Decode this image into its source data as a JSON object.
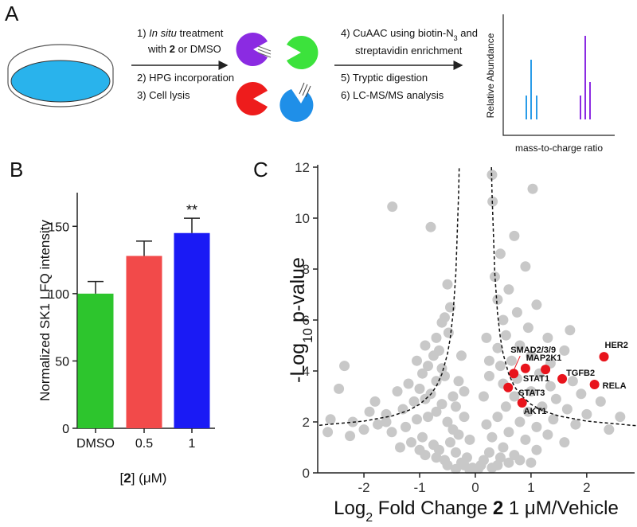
{
  "panels": {
    "a": "A",
    "b": "B",
    "c": "C"
  },
  "workflow": {
    "left_lines": [
      [
        "1) ",
        "In situ",
        " treatment"
      ],
      [
        "with ",
        "2",
        " or DMSO"
      ],
      [
        "2) HPG incorporation"
      ],
      [
        "3) Cell lysis"
      ]
    ],
    "right_lines": [
      [
        "4) CuAAC using biotin-N",
        "3",
        " and"
      ],
      [
        "streptavidin enrichment"
      ],
      [
        "5) Tryptic digestion"
      ],
      [
        "6) LC-MS/MS analysis"
      ]
    ],
    "spectrum": {
      "y_label": "Relative Abundance",
      "x_label": "mass-to-charge ratio"
    }
  },
  "chart_data": [
    {
      "type": "bar",
      "ylabel": "Normalized SK1 LFQ intensity",
      "xlabel": [
        "[",
        "2",
        "]",
        " (μM)"
      ],
      "categories": [
        "DMSO",
        "0.5",
        "1"
      ],
      "values": [
        100,
        128,
        145
      ],
      "errors": [
        9,
        11,
        11
      ],
      "colors": [
        "#2dc52d",
        "#f24a4a",
        "#1a1af5"
      ],
      "value_annotations": [
        null,
        null,
        "**"
      ],
      "ylim": [
        0,
        175
      ],
      "yticks": [
        0,
        50,
        100,
        150
      ]
    },
    {
      "type": "scatter",
      "ylabel": [
        "-Log",
        "10",
        " p-value"
      ],
      "xlabel": [
        "Log",
        "2",
        " Fold Change ",
        "2",
        " 1 μM/Vehicle"
      ],
      "xlim": [
        -2.83,
        2.86
      ],
      "ylim": [
        0,
        12
      ],
      "xticks": [
        -2,
        -1,
        0,
        1,
        2
      ],
      "yticks": [
        0,
        2,
        4,
        6,
        8,
        10,
        12
      ],
      "series": [
        {
          "color": "#c8c8c8",
          "x": [
            -1.49,
            -0.8,
            -0.5,
            -0.45,
            -0.55,
            -0.6,
            -0.48,
            -0.7,
            -0.9,
            -0.65,
            -0.75,
            -1.05,
            -0.85,
            -0.95,
            -0.6,
            -0.55,
            -0.7,
            -1.2,
            -1.0,
            -0.8,
            -1.4,
            -0.9,
            -1.1,
            -0.6,
            -0.7,
            -1.3,
            -1.6,
            -1.9,
            -2.2,
            -2.6,
            -2.65,
            -2.25,
            -2.0,
            -1.75,
            -1.5,
            -1.25,
            -1.05,
            -0.85,
            -0.5,
            -0.4,
            -2.45,
            -2.35,
            -1.8,
            -1.6,
            -0.95,
            -0.75,
            -1.15,
            -1.35,
            -0.65,
            -0.45,
            -0.35,
            -0.55,
            -0.25,
            -0.15,
            -0.3,
            -0.2,
            -0.1,
            -0.05,
            -0.4,
            -0.35,
            -0.3,
            -0.25,
            -0.2,
            0.3,
            1.03,
            0.31,
            0.7,
            0.45,
            0.9,
            0.35,
            0.6,
            0.4,
            1.1,
            0.75,
            0.5,
            0.95,
            0.55,
            1.3,
            0.8,
            0.4,
            1.6,
            1.0,
            0.65,
            1.35,
            0.45,
            1.15,
            1.75,
            0.75,
            1.35,
            0.5,
            1.0,
            1.9,
            0.7,
            1.45,
            2.25,
            1.2,
            0.55,
            1.65,
            0.95,
            2.0,
            2.6,
            1.4,
            0.4,
            0.8,
            1.1,
            1.8,
            2.4,
            0.6,
            1.3,
            0.3,
            0.9,
            1.6,
            0.5,
            1.1,
            0.25,
            0.7,
            0.15,
            0.4,
            0.05,
            0.2,
            0.15,
            0.25,
            0.2,
            0.25,
            1.7,
            0,
            -0.1,
            0.1,
            -0.2,
            0.3,
            -0.35,
            0.45,
            -0.5,
            0.6,
            -0.7,
            0.8,
            -0.9,
            1.0,
            -1.0
          ],
          "y": [
            10.45,
            9.65,
            7.4,
            6.5,
            6.1,
            5.9,
            5.5,
            5.3,
            5.0,
            4.8,
            4.6,
            4.4,
            4.2,
            3.9,
            4.1,
            3.8,
            3.6,
            3.5,
            3.3,
            3.1,
            3.2,
            2.9,
            2.8,
            2.7,
            2.4,
            2.5,
            2.3,
            2.4,
            2.0,
            2.1,
            1.6,
            1.45,
            1.7,
            1.9,
            1.6,
            1.8,
            2.1,
            2.2,
            2.0,
            1.7,
            3.3,
            4.2,
            2.8,
            2.0,
            1.4,
            1.1,
            1.2,
            1.0,
            0.9,
            1.2,
            0.8,
            0.5,
            0.4,
            0.6,
            1.5,
            2.2,
            1.3,
            0.2,
            3.0,
            2.6,
            3.6,
            4.6,
            3.2,
            11.7,
            11.15,
            10.65,
            9.3,
            8.6,
            8.1,
            7.7,
            7.2,
            6.8,
            6.6,
            6.3,
            6.0,
            5.7,
            5.4,
            5.3,
            5.0,
            4.9,
            4.8,
            4.6,
            4.4,
            4.3,
            4.2,
            3.9,
            3.6,
            3.7,
            3.4,
            3.5,
            3.2,
            3.1,
            3.0,
            2.9,
            2.8,
            2.6,
            2.6,
            2.5,
            2.4,
            2.3,
            2.2,
            2.1,
            2.2,
            2.0,
            1.8,
            1.9,
            1.7,
            1.6,
            1.5,
            1.4,
            1.3,
            1.2,
            1.0,
            0.9,
            0.8,
            0.7,
            0.5,
            0.3,
            0.15,
            1.9,
            3.0,
            3.8,
            5.3,
            4.4,
            5.6,
            0.05,
            0.1,
            0.3,
            0.3,
            0.2,
            0.15,
            0.6,
            0.3,
            0.4,
            0.6,
            0.5,
            0.7,
            0.4,
            0.9
          ]
        },
        {
          "color": "#e8141c",
          "x": [
            2.31,
            2.14,
            1.56,
            1.26,
            0.9,
            0.69,
            0.59,
            0.84
          ],
          "y": [
            4.56,
            3.47,
            3.69,
            4.06,
            4.1,
            3.9,
            3.35,
            2.75
          ],
          "labels": [
            "HER2",
            "RELA",
            "TGFB2",
            "MAP2K1",
            "STAT1",
            "SMAD2/3/9",
            "STAT3",
            "AKT1"
          ]
        }
      ],
      "threshold": {
        "x": [
          -2.8,
          -2.0,
          -1.5,
          -1.2,
          -1.0,
          -0.8,
          -0.7,
          -0.6,
          -0.5,
          -0.45,
          -0.4,
          -0.35,
          -0.3,
          -0.29,
          null,
          0.29,
          0.3,
          0.35,
          0.4,
          0.45,
          0.5,
          0.6,
          0.7,
          0.8,
          1.0,
          1.2,
          1.5,
          2.0,
          2.8,
          2.9
        ],
        "y": [
          1.87,
          2.03,
          2.23,
          2.45,
          2.69,
          3.08,
          3.4,
          3.88,
          4.67,
          5.3,
          6.25,
          7.83,
          11.0,
          12,
          null,
          12,
          11.0,
          7.83,
          6.25,
          5.3,
          4.67,
          3.88,
          3.4,
          3.08,
          2.69,
          2.45,
          2.23,
          2.03,
          1.87,
          1.85
        ]
      }
    }
  ]
}
